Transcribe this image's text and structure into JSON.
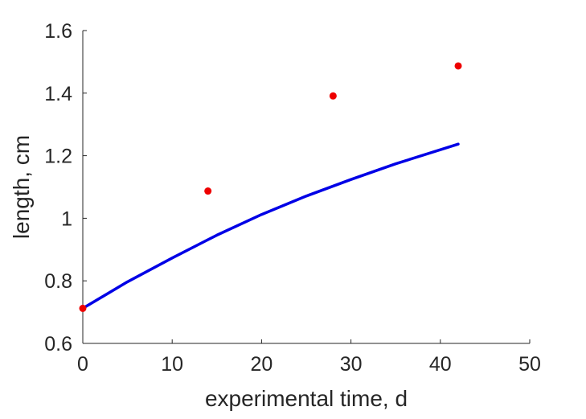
{
  "chart_data": {
    "type": "line",
    "xlabel": "experimental time, d",
    "ylabel": "length, cm",
    "xlim": [
      0,
      50
    ],
    "ylim": [
      0.6,
      1.6
    ],
    "x_ticks": [
      0,
      10,
      20,
      30,
      40,
      50
    ],
    "y_ticks": [
      0.6,
      0.8,
      1.0,
      1.2,
      1.4,
      1.6
    ],
    "x_tick_labels": [
      "0",
      "10",
      "20",
      "30",
      "40",
      "50"
    ],
    "y_tick_labels": [
      "0.6",
      "0.8",
      "1",
      "1.2",
      "1.4",
      "1.6"
    ],
    "grid": false,
    "series": [
      {
        "type": "line",
        "color": "#0000e6",
        "x": [
          0,
          5,
          10,
          15,
          20,
          25,
          30,
          35,
          42
        ],
        "y": [
          0.712,
          0.797,
          0.873,
          0.946,
          1.012,
          1.071,
          1.124,
          1.174,
          1.237
        ]
      },
      {
        "type": "scatter",
        "color": "#ee0000",
        "x": [
          0,
          14,
          28,
          42
        ],
        "y": [
          0.712,
          1.087,
          1.391,
          1.487
        ]
      }
    ]
  }
}
